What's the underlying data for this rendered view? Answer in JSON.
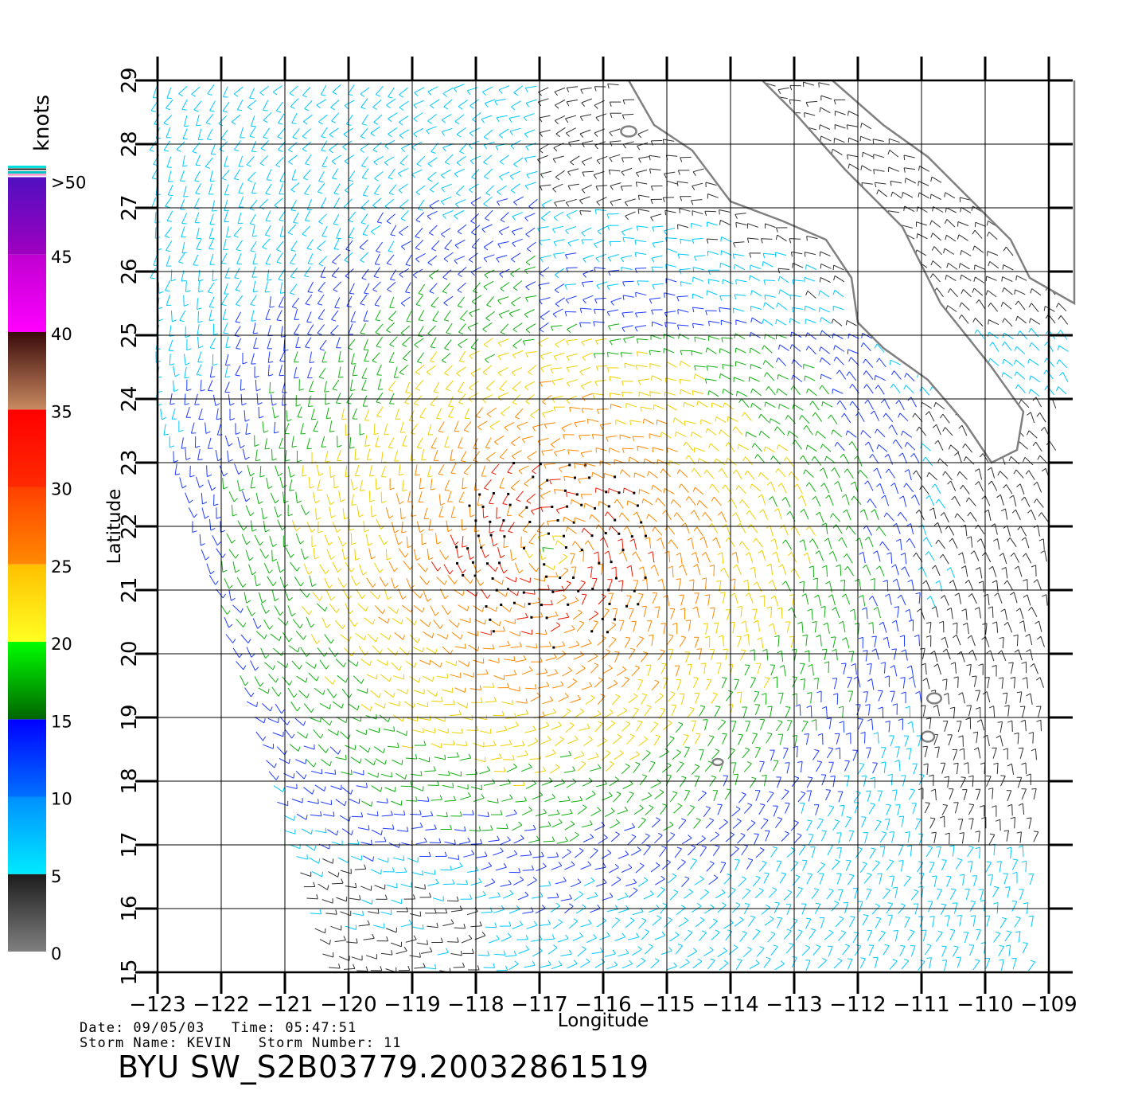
{
  "map": {
    "extent": {
      "lon_min": -123,
      "lon_max": -108.6,
      "lat_min": 15,
      "lat_max": 29
    },
    "lon_ticks": [
      -123,
      -122,
      -121,
      -120,
      -119,
      -118,
      -117,
      -116,
      -115,
      -114,
      -113,
      -112,
      -111,
      -110,
      -109
    ],
    "lat_ticks": [
      15,
      16,
      17,
      18,
      19,
      20,
      21,
      22,
      23,
      24,
      25,
      26,
      27,
      28,
      29
    ],
    "lon_tick_labels": [
      "−123",
      "−122",
      "−121",
      "−120",
      "−119",
      "−118",
      "−117",
      "−116",
      "−115",
      "−114",
      "−113",
      "−112",
      "−111",
      "−110",
      "−109"
    ],
    "lat_tick_labels": [
      "15",
      "16",
      "17",
      "18",
      "19",
      "20",
      "21",
      "22",
      "23",
      "24",
      "25",
      "26",
      "27",
      "28",
      "29"
    ],
    "xlabel": "Longitude",
    "ylabel": "Latitude",
    "coast_color": "#808080",
    "storm_center": {
      "lon": -116.8,
      "lat": 21.6
    }
  },
  "colorbar": {
    "unit_label": "knots",
    "tick_labels": [
      "0",
      "5",
      "10",
      "15",
      "20",
      "25",
      "30",
      "35",
      "40",
      "45",
      ">50"
    ],
    "tick_values": [
      0,
      5,
      10,
      15,
      20,
      25,
      30,
      35,
      40,
      45,
      50
    ],
    "bands": [
      {
        "from": 0,
        "to": 5,
        "colors": [
          "#808080",
          "#1c1c1c"
        ]
      },
      {
        "from": 5,
        "to": 10,
        "colors": [
          "#00eaff",
          "#0090ff"
        ]
      },
      {
        "from": 10,
        "to": 15,
        "colors": [
          "#0070ff",
          "#0000ff"
        ]
      },
      {
        "from": 15,
        "to": 20,
        "colors": [
          "#006400",
          "#00ff00"
        ]
      },
      {
        "from": 20,
        "to": 25,
        "colors": [
          "#ffff22",
          "#ffc000"
        ]
      },
      {
        "from": 25,
        "to": 30,
        "colors": [
          "#ff8a00",
          "#ff4000"
        ]
      },
      {
        "from": 30,
        "to": 35,
        "colors": [
          "#ff2a00",
          "#ff0000"
        ]
      },
      {
        "from": 35,
        "to": 40,
        "colors": [
          "#c88a60",
          "#3a0a0a"
        ]
      },
      {
        "from": 40,
        "to": 45,
        "colors": [
          "#ff00ff",
          "#c000d0"
        ]
      },
      {
        "from": 45,
        "to": 50,
        "colors": [
          "#a000c0",
          "#5010c0"
        ]
      }
    ]
  },
  "footer": {
    "date_time": "Date: 09/05/03   Time: 05:47:51",
    "storm": "Storm Name: KEVIN   Storm Number: 11",
    "product": "BYU SW_S2B03779.20032861519"
  }
}
